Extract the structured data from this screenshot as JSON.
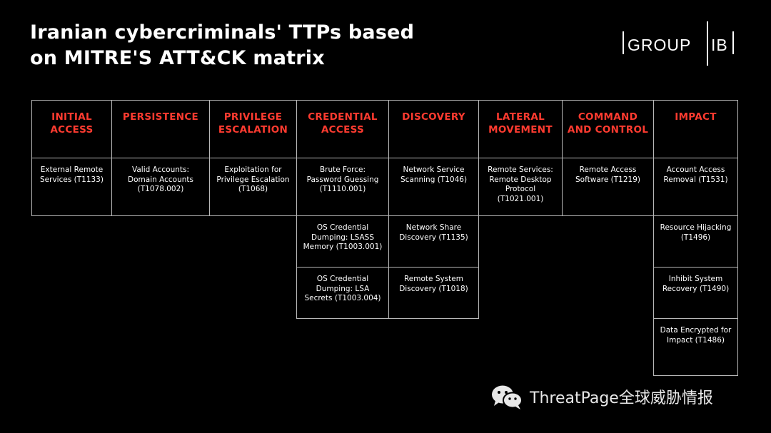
{
  "title": {
    "line1": "Iranian cybercriminals' TTPs based",
    "line2": "on MITRE'S ATT&CK matrix"
  },
  "logo": {
    "left": "GROUP",
    "right": "IB"
  },
  "colors": {
    "header": "#ff3b30",
    "border": "#b8b8b8",
    "background": "#000000"
  },
  "matrix": {
    "headers": [
      "INITIAL ACCESS",
      "PERSISTENCE",
      "PRIVILEGE ESCALATION",
      "CREDENTIAL ACCESS",
      "DISCOVERY",
      "LATERAL MOVEMENT",
      "COMMAND AND CONTROL",
      "IMPACT"
    ],
    "columns": [
      [
        "External Remote Services (T1133)"
      ],
      [
        "Valid Accounts: Domain Accounts (T1078.002)"
      ],
      [
        "Exploitation for Privilege Escalation (T1068)"
      ],
      [
        "Brute Force: Password Guessing (T1110.001)",
        "OS Credential Dumping: LSASS Memory (T1003.001)",
        "OS Credential Dumping: LSA Secrets (T1003.004)"
      ],
      [
        "Network Service Scanning (T1046)",
        "Network Share Discovery (T1135)",
        "Remote System Discovery (T1018)"
      ],
      [
        "Remote Services: Remote Desktop Protocol (T1021.001)"
      ],
      [
        "Remote Access Software (T1219)"
      ],
      [
        "Account Access Removal (T1531)",
        "Resource Hijacking (T1496)",
        "Inhibit System Recovery (T1490)",
        "Data Encrypted for Impact (T1486)"
      ]
    ]
  },
  "footer": {
    "text": "ThreatPage全球威胁情报",
    "icon": "wechat-icon"
  }
}
